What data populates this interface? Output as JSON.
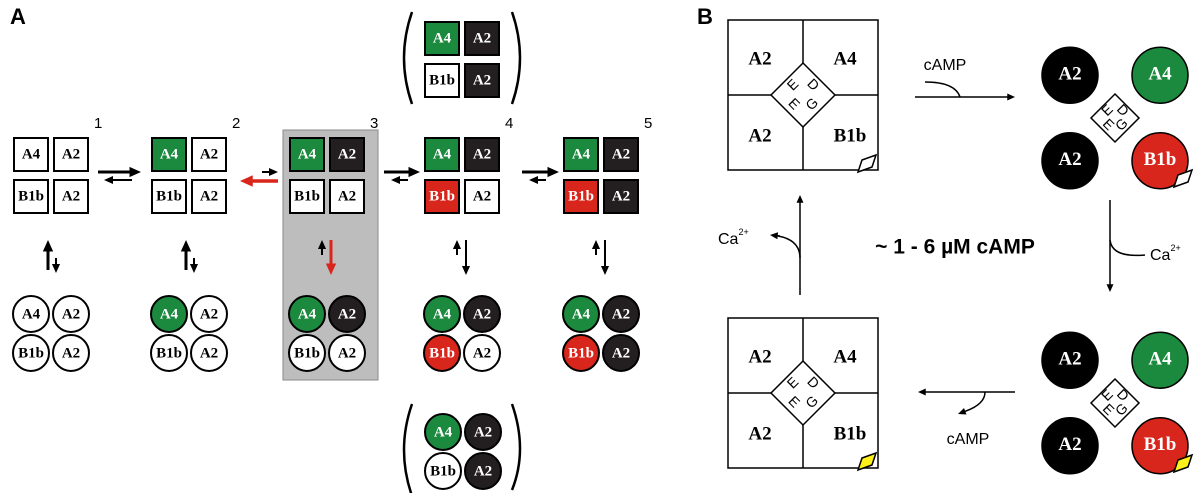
{
  "panel_a": {
    "label": "A",
    "states": [
      {
        "number": "1",
        "subunits": [
          "A4",
          "A2",
          "B1b",
          "A2"
        ],
        "fills": [
          "#ffffff",
          "#ffffff",
          "#ffffff",
          "#ffffff"
        ]
      },
      {
        "number": "2",
        "subunits": [
          "A4",
          "A2",
          "B1b",
          "A2"
        ],
        "fills": [
          "#1c8a3e",
          "#ffffff",
          "#ffffff",
          "#ffffff"
        ]
      },
      {
        "number": "3",
        "subunits": [
          "A4",
          "A2",
          "B1b",
          "A2"
        ],
        "fills": [
          "#1c8a3e",
          "#231f20",
          "#ffffff",
          "#ffffff"
        ]
      },
      {
        "number": "4",
        "subunits": [
          "A4",
          "A2",
          "B1b",
          "A2"
        ],
        "fills": [
          "#1c8a3e",
          "#231f20",
          "#d9261c",
          "#ffffff"
        ]
      },
      {
        "number": "5",
        "subunits": [
          "A4",
          "A2",
          "B1b",
          "A2"
        ],
        "fills": [
          "#1c8a3e",
          "#231f20",
          "#d9261c",
          "#231f20"
        ]
      }
    ],
    "alt_top": {
      "subunits": [
        "A4",
        "A2",
        "B1b",
        "A2"
      ],
      "fills": [
        "#1c8a3e",
        "#231f20",
        "#ffffff",
        "#231f20"
      ]
    },
    "alt_bottom": {
      "subunits": [
        "A4",
        "A2",
        "B1b",
        "A2"
      ],
      "fills": [
        "#1c8a3e",
        "#231f20",
        "#ffffff",
        "#231f20"
      ]
    }
  },
  "panel_b": {
    "label": "B",
    "center_label": "~ 1 - 6 µM cAMP",
    "camp_top": "cAMP",
    "camp_bottom": "cAMP",
    "ca_right": {
      "base": "Ca",
      "sup": "2+"
    },
    "ca_left": {
      "base": "Ca",
      "sup": "2+"
    },
    "complexes": [
      {
        "subunits": [
          "A2",
          "A4",
          "A2",
          "B1b"
        ],
        "site_letters": [
          "E",
          "D",
          "E",
          "G"
        ],
        "fills": [
          "#ffffff",
          "#ffffff",
          "#ffffff",
          "#ffffff"
        ],
        "tag": "#ffffff"
      },
      {
        "subunits": [
          "A2",
          "A4",
          "A2",
          "B1b"
        ],
        "site_letters": [
          "E",
          "D",
          "E",
          "G"
        ],
        "fills": [
          "#000000",
          "#1c8a3e",
          "#000000",
          "#d9261c"
        ],
        "tag": "#ffffff"
      },
      {
        "subunits": [
          "A2",
          "A4",
          "A2",
          "B1b"
        ],
        "site_letters": [
          "E",
          "D",
          "E",
          "G"
        ],
        "fills": [
          "#000000",
          "#1c8a3e",
          "#000000",
          "#d9261c"
        ],
        "tag": "#ffef1a"
      },
      {
        "subunits": [
          "A2",
          "A4",
          "A2",
          "B1b"
        ],
        "site_letters": [
          "E",
          "D",
          "E",
          "G"
        ],
        "fills": [
          "#ffffff",
          "#ffffff",
          "#ffffff",
          "#ffffff"
        ],
        "tag": "#ffef1a"
      }
    ]
  }
}
